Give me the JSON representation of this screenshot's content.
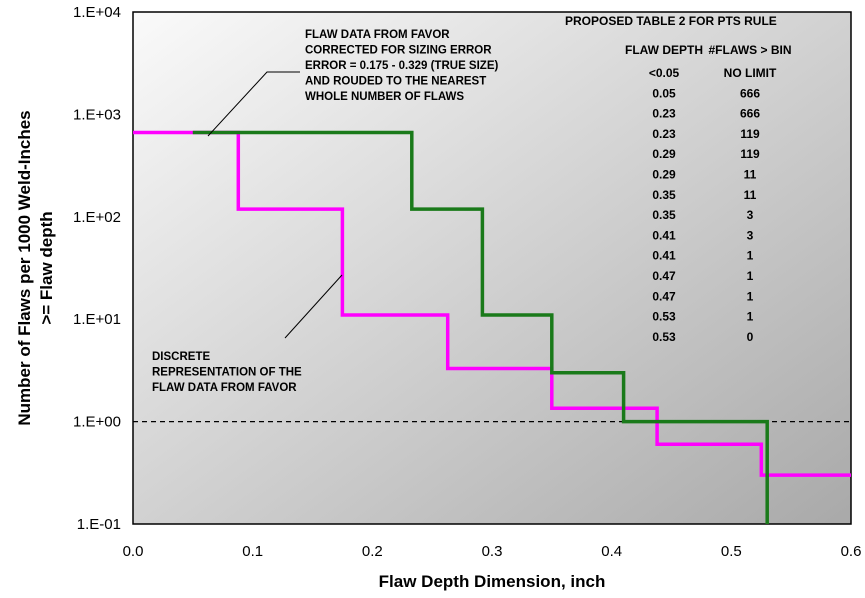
{
  "chart_data": {
    "type": "line",
    "xlabel": "Flaw Depth Dimension, inch",
    "ylabel": [
      "Number of Flaws per 1000 Weld-Inches",
      ">= Flaw depth"
    ],
    "xlim": [
      0,
      0.6
    ],
    "ylim": [
      0.1,
      10000
    ],
    "yscale": "log",
    "x_ticks": [
      "0.0",
      "0.1",
      "0.2",
      "0.3",
      "0.4",
      "0.5",
      "0.6"
    ],
    "y_ticks": [
      "1.E-01",
      "1.E+00",
      "1.E+01",
      "1.E+02",
      "1.E+03",
      "1.E+04"
    ],
    "reference_line": {
      "y": 1,
      "style": "dashed"
    },
    "series": [
      {
        "color": "#ff00ff",
        "style": "step",
        "x": [
          0,
          0.088,
          0.088,
          0.175,
          0.175,
          0.263,
          0.263,
          0.35,
          0.35,
          0.438,
          0.438,
          0.525,
          0.525,
          0.6
        ],
        "y": [
          666,
          666,
          119,
          119,
          11,
          11,
          3.3,
          3.3,
          1.35,
          1.35,
          0.6,
          0.6,
          0.3,
          0.3
        ]
      },
      {
        "color": "#1a7a1a",
        "style": "step",
        "x": [
          0.05,
          0.233,
          0.233,
          0.292,
          0.292,
          0.35,
          0.35,
          0.41,
          0.41,
          0.53,
          0.53
        ],
        "y": [
          666,
          666,
          119,
          119,
          11,
          11,
          3,
          3,
          1,
          1,
          0.1
        ]
      }
    ],
    "annotations": [
      {
        "lines": [
          "FLAW DATA FROM FAVOR",
          "CORRECTED FOR SIZING ERROR",
          "ERROR = 0.175 - 0.329 (TRUE SIZE)",
          "AND ROUDED TO THE NEAREST",
          "WHOLE NUMBER OF FLAWS"
        ]
      },
      {
        "lines": [
          "DISCRETE",
          "REPRESENTATION OF THE",
          "FLAW DATA FROM FAVOR"
        ]
      }
    ],
    "table": {
      "title": "PROPOSED TABLE 2 FOR PTS RULE",
      "headers": [
        "FLAW DEPTH",
        "#FLAWS > BIN"
      ],
      "rows": [
        [
          "<0.05",
          "NO LIMIT"
        ],
        [
          "0.05",
          "666"
        ],
        [
          "0.23",
          "666"
        ],
        [
          "0.23",
          "119"
        ],
        [
          "0.29",
          "119"
        ],
        [
          "0.29",
          "11"
        ],
        [
          "0.35",
          "11"
        ],
        [
          "0.35",
          "3"
        ],
        [
          "0.41",
          "3"
        ],
        [
          "0.41",
          "1"
        ],
        [
          "0.47",
          "1"
        ],
        [
          "0.47",
          "1"
        ],
        [
          "0.53",
          "1"
        ],
        [
          "0.53",
          "0"
        ]
      ]
    }
  }
}
